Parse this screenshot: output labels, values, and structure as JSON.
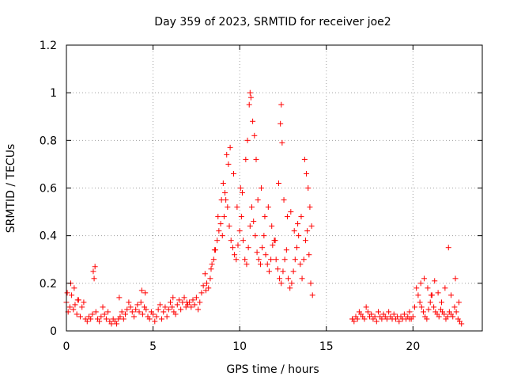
{
  "chart_data": {
    "type": "scatter",
    "title": "Day 359 of 2023, SRMTID for receiver joe2",
    "xlabel": "GPS time / hours",
    "ylabel": "SRMTID / TECUs",
    "xlim": [
      0,
      24
    ],
    "ylim": [
      0,
      1.2
    ],
    "xticks": [
      0,
      5,
      10,
      15,
      20
    ],
    "xtick_labels": [
      "0",
      "5",
      "10",
      "15",
      "20"
    ],
    "yticks": [
      0,
      0.2,
      0.4,
      0.6,
      0.8,
      1.0,
      1.2
    ],
    "ytick_labels": [
      "0",
      "0.2",
      "0.4",
      "0.6",
      "0.8",
      "1",
      "1.2"
    ],
    "grid": true,
    "marker": "plus",
    "color": "#ff0000",
    "series": [
      {
        "name": "SRMTID",
        "x": [
          0.0,
          0.1,
          0.2,
          0.3,
          0.4,
          0.5,
          0.6,
          0.7,
          0.8,
          0.9,
          1.0,
          1.1,
          1.2,
          1.3,
          1.4,
          1.5,
          1.6,
          1.7,
          1.8,
          1.9,
          2.0,
          2.1,
          2.2,
          2.3,
          2.4,
          2.5,
          2.6,
          2.7,
          2.8,
          2.9,
          3.0,
          3.1,
          3.2,
          3.3,
          3.4,
          3.5,
          3.6,
          3.7,
          3.8,
          3.9,
          4.0,
          4.1,
          4.2,
          4.3,
          4.4,
          4.5,
          4.6,
          4.7,
          4.8,
          4.9,
          5.0,
          5.1,
          5.2,
          5.3,
          5.4,
          5.5,
          5.6,
          5.7,
          5.8,
          5.9,
          6.0,
          6.1,
          6.2,
          6.3,
          6.4,
          6.5,
          6.6,
          6.7,
          6.8,
          6.9,
          7.0,
          7.1,
          7.2,
          7.3,
          7.4,
          7.5,
          7.6,
          7.7,
          7.8,
          7.9,
          8.0,
          8.1,
          8.2,
          8.3,
          8.4,
          8.5,
          8.6,
          8.7,
          8.8,
          8.9,
          9.0,
          9.1,
          9.2,
          9.3,
          9.4,
          9.5,
          9.6,
          9.7,
          9.8,
          9.9,
          10.0,
          10.1,
          10.2,
          10.3,
          10.4,
          10.5,
          10.6,
          10.7,
          10.8,
          10.9,
          11.0,
          11.1,
          11.2,
          11.3,
          11.4,
          11.5,
          11.6,
          11.7,
          11.8,
          11.9,
          12.0,
          12.1,
          12.2,
          12.3,
          12.4,
          12.5,
          12.6,
          12.7,
          12.8,
          12.9,
          13.0,
          13.1,
          13.2,
          13.3,
          13.4,
          13.5,
          13.6,
          13.7,
          13.8,
          13.9,
          14.0,
          14.1,
          14.2,
          16.5,
          16.6,
          16.7,
          16.8,
          16.9,
          17.0,
          17.1,
          17.2,
          17.3,
          17.4,
          17.5,
          17.6,
          17.7,
          17.8,
          17.9,
          18.0,
          18.1,
          18.2,
          18.3,
          18.4,
          18.5,
          18.6,
          18.7,
          18.8,
          18.9,
          19.0,
          19.1,
          19.2,
          19.3,
          19.4,
          19.5,
          19.6,
          19.7,
          19.8,
          19.9,
          20.0,
          20.1,
          20.2,
          20.3,
          20.4,
          20.5,
          20.6,
          20.7,
          20.8,
          20.9,
          21.0,
          21.1,
          21.2,
          21.3,
          21.4,
          21.5,
          21.6,
          21.7,
          21.8,
          21.9,
          22.0,
          22.1,
          22.2,
          22.3,
          22.4,
          22.5,
          22.6,
          22.7,
          22.8,
          0.05,
          0.25,
          0.45,
          0.65,
          1.55,
          1.65,
          3.05,
          4.35,
          4.55,
          6.15,
          6.95,
          8.05,
          8.35,
          8.55,
          8.75,
          8.95,
          9.05,
          9.15,
          9.25,
          9.35,
          9.45,
          9.65,
          9.85,
          10.05,
          10.15,
          10.35,
          10.45,
          10.55,
          10.6,
          10.65,
          10.75,
          10.85,
          10.95,
          11.05,
          11.25,
          11.45,
          11.65,
          11.85,
          12.05,
          12.25,
          12.35,
          12.4,
          12.45,
          12.55,
          12.75,
          12.95,
          13.15,
          13.35,
          13.55,
          13.75,
          13.85,
          13.95,
          14.05,
          14.15,
          16.5,
          19.8,
          20.45,
          20.65,
          20.85,
          21.05,
          21.25,
          21.45,
          21.65,
          21.85,
          22.05,
          22.2,
          22.45,
          22.65
        ],
        "y": [
          0.12,
          0.08,
          0.1,
          0.15,
          0.09,
          0.11,
          0.07,
          0.13,
          0.06,
          0.1,
          0.12,
          0.05,
          0.04,
          0.06,
          0.05,
          0.07,
          0.22,
          0.08,
          0.05,
          0.04,
          0.06,
          0.1,
          0.07,
          0.05,
          0.08,
          0.04,
          0.03,
          0.05,
          0.04,
          0.03,
          0.05,
          0.06,
          0.08,
          0.05,
          0.07,
          0.09,
          0.12,
          0.1,
          0.08,
          0.06,
          0.09,
          0.11,
          0.08,
          0.12,
          0.07,
          0.1,
          0.09,
          0.06,
          0.05,
          0.08,
          0.07,
          0.04,
          0.06,
          0.09,
          0.11,
          0.05,
          0.08,
          0.1,
          0.06,
          0.09,
          0.12,
          0.1,
          0.08,
          0.07,
          0.11,
          0.13,
          0.09,
          0.12,
          0.14,
          0.1,
          0.11,
          0.12,
          0.1,
          0.13,
          0.11,
          0.14,
          0.09,
          0.12,
          0.16,
          0.19,
          0.24,
          0.2,
          0.18,
          0.22,
          0.28,
          0.3,
          0.34,
          0.38,
          0.42,
          0.45,
          0.4,
          0.48,
          0.55,
          0.52,
          0.44,
          0.38,
          0.35,
          0.32,
          0.3,
          0.36,
          0.42,
          0.48,
          0.38,
          0.3,
          0.28,
          0.35,
          0.44,
          0.52,
          0.46,
          0.4,
          0.33,
          0.3,
          0.28,
          0.35,
          0.4,
          0.32,
          0.28,
          0.25,
          0.3,
          0.36,
          0.38,
          0.3,
          0.26,
          0.22,
          0.2,
          0.25,
          0.3,
          0.34,
          0.22,
          0.18,
          0.2,
          0.25,
          0.3,
          0.35,
          0.4,
          0.28,
          0.22,
          0.3,
          0.38,
          0.42,
          0.32,
          0.2,
          0.15,
          0.05,
          0.04,
          0.06,
          0.05,
          0.08,
          0.07,
          0.06,
          0.05,
          0.1,
          0.08,
          0.06,
          0.07,
          0.05,
          0.06,
          0.04,
          0.08,
          0.06,
          0.05,
          0.07,
          0.06,
          0.05,
          0.08,
          0.06,
          0.05,
          0.07,
          0.05,
          0.06,
          0.04,
          0.06,
          0.05,
          0.07,
          0.05,
          0.06,
          0.08,
          0.05,
          0.06,
          0.1,
          0.18,
          0.15,
          0.12,
          0.1,
          0.08,
          0.06,
          0.05,
          0.09,
          0.12,
          0.15,
          0.1,
          0.08,
          0.07,
          0.06,
          0.09,
          0.08,
          0.07,
          0.05,
          0.06,
          0.08,
          0.07,
          0.06,
          0.1,
          0.08,
          0.05,
          0.04,
          0.03,
          0.16,
          0.2,
          0.18,
          0.13,
          0.25,
          0.27,
          0.14,
          0.17,
          0.16,
          0.14,
          0.12,
          0.17,
          0.26,
          0.34,
          0.48,
          0.55,
          0.62,
          0.58,
          0.74,
          0.7,
          0.77,
          0.66,
          0.52,
          0.6,
          0.58,
          0.72,
          0.8,
          0.95,
          1.0,
          0.98,
          0.88,
          0.82,
          0.72,
          0.55,
          0.6,
          0.48,
          0.52,
          0.44,
          0.38,
          0.62,
          0.87,
          0.95,
          0.79,
          0.55,
          0.48,
          0.5,
          0.42,
          0.45,
          0.48,
          0.72,
          0.66,
          0.6,
          0.52,
          0.44,
          0.05,
          0.05,
          0.2,
          0.22,
          0.18,
          0.15,
          0.21,
          0.16,
          0.12,
          0.18,
          0.35,
          0.15,
          0.22,
          0.12
        ]
      }
    ]
  }
}
